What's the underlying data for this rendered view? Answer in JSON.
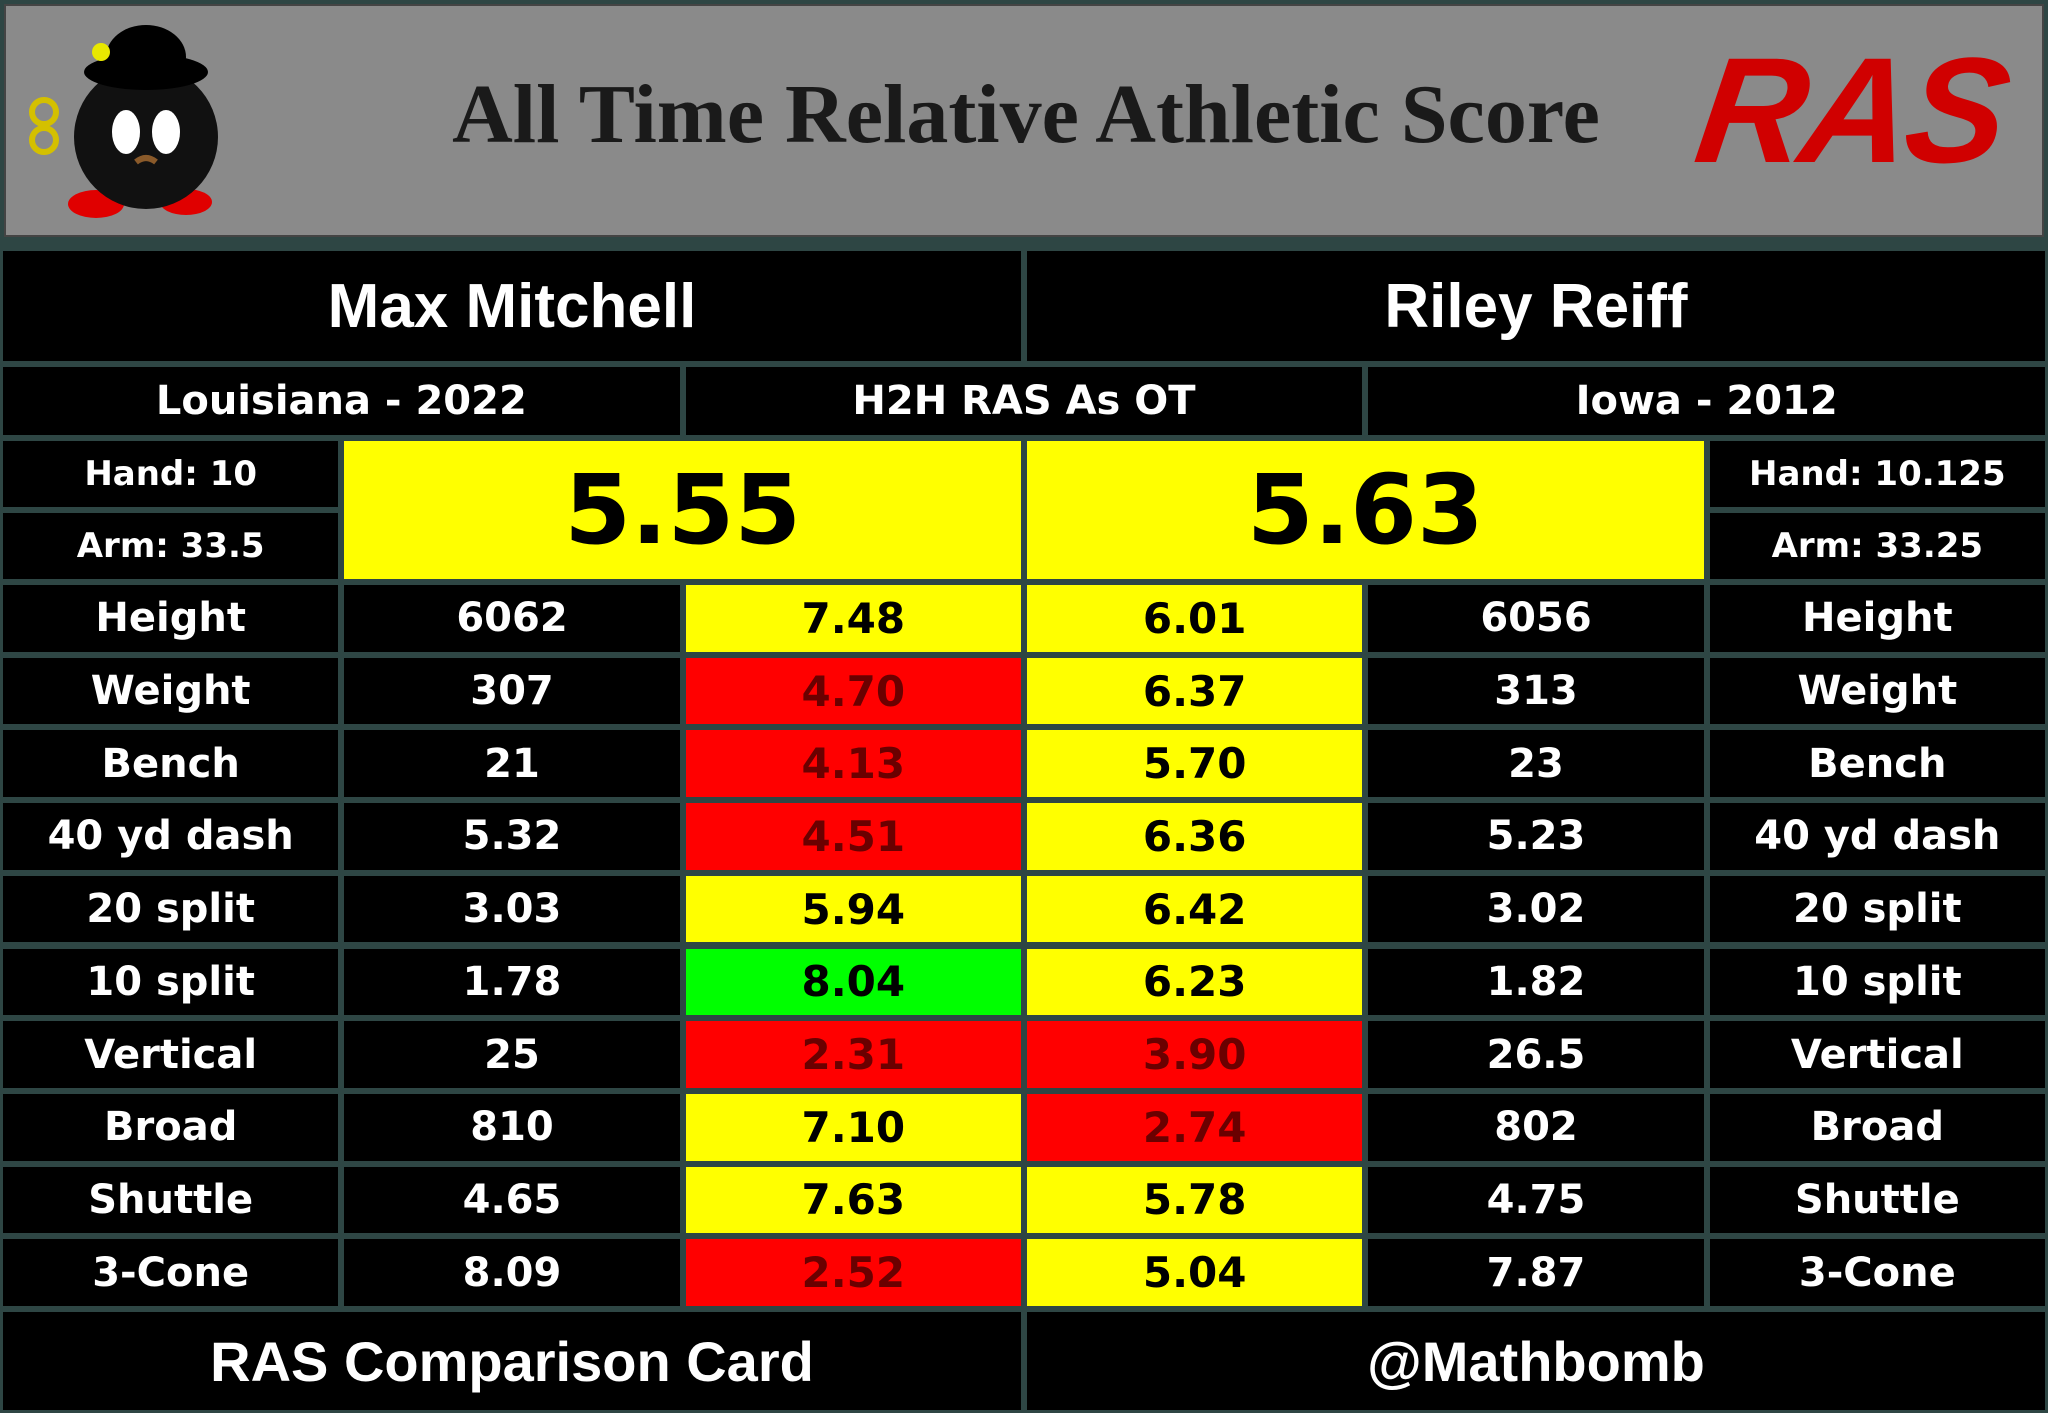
{
  "header": {
    "title": "All Time Relative Athletic Score",
    "logo_text": "RAS"
  },
  "left": {
    "name": "Max Mitchell",
    "school_year": "Louisiana - 2022",
    "hand": "Hand: 10",
    "arm": "Arm: 33.5",
    "ras": "5.55"
  },
  "middle_label": "H2H RAS As OT",
  "right": {
    "name": "Riley Reiff",
    "school_year": "Iowa - 2012",
    "hand": "Hand: 10.125",
    "arm": "Arm: 33.25",
    "ras": "5.63"
  },
  "score_colors": {
    "yellow": "#ffff00",
    "red": "#ff0000",
    "green": "#00ff00"
  },
  "rows": [
    {
      "label": "Height",
      "left_value": "6062",
      "left_score": "7.48",
      "left_color": "yellow",
      "right_score": "6.01",
      "right_color": "yellow",
      "right_value": "6056"
    },
    {
      "label": "Weight",
      "left_value": "307",
      "left_score": "4.70",
      "left_color": "red",
      "right_score": "6.37",
      "right_color": "yellow",
      "right_value": "313"
    },
    {
      "label": "Bench",
      "left_value": "21",
      "left_score": "4.13",
      "left_color": "red",
      "right_score": "5.70",
      "right_color": "yellow",
      "right_value": "23"
    },
    {
      "label": "40 yd dash",
      "left_value": "5.32",
      "left_score": "4.51",
      "left_color": "red",
      "right_score": "6.36",
      "right_color": "yellow",
      "right_value": "5.23"
    },
    {
      "label": "20 split",
      "left_value": "3.03",
      "left_score": "5.94",
      "left_color": "yellow",
      "right_score": "6.42",
      "right_color": "yellow",
      "right_value": "3.02"
    },
    {
      "label": "10 split",
      "left_value": "1.78",
      "left_score": "8.04",
      "left_color": "green",
      "right_score": "6.23",
      "right_color": "yellow",
      "right_value": "1.82"
    },
    {
      "label": "Vertical",
      "left_value": "25",
      "left_score": "2.31",
      "left_color": "red",
      "right_score": "3.90",
      "right_color": "red",
      "right_value": "26.5"
    },
    {
      "label": "Broad",
      "left_value": "810",
      "left_score": "7.10",
      "left_color": "yellow",
      "right_score": "2.74",
      "right_color": "red",
      "right_value": "802"
    },
    {
      "label": "Shuttle",
      "left_value": "4.65",
      "left_score": "7.63",
      "left_color": "yellow",
      "right_score": "5.78",
      "right_color": "yellow",
      "right_value": "4.75"
    },
    {
      "label": "3-Cone",
      "left_value": "8.09",
      "left_score": "2.52",
      "left_color": "red",
      "right_score": "5.04",
      "right_color": "yellow",
      "right_value": "7.87"
    }
  ],
  "footer": {
    "left": "RAS Comparison Card",
    "right": "@Mathbomb"
  }
}
